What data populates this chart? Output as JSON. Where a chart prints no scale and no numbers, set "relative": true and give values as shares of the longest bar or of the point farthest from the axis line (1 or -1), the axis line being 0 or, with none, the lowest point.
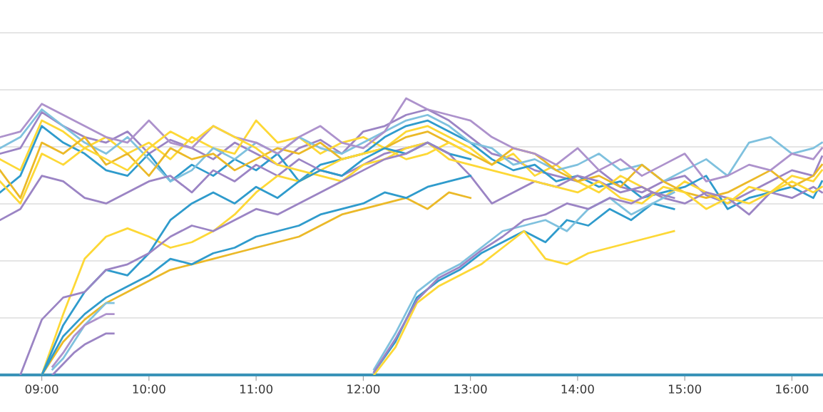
{
  "chart_data": {
    "type": "line",
    "relative": true,
    "grid": "y",
    "marker": "none",
    "line_style": "solid",
    "xlim": [
      8.61,
      16.29
    ],
    "xticks": [
      {
        "value": 9,
        "label": "09:00"
      },
      {
        "value": 10,
        "label": "10:00"
      },
      {
        "value": 11,
        "label": "11:00"
      },
      {
        "value": 12,
        "label": "12:00"
      },
      {
        "value": 13,
        "label": "13:00"
      },
      {
        "value": 14,
        "label": "14:00"
      },
      {
        "value": 15,
        "label": "15:00"
      },
      {
        "value": 16,
        "label": "16:00"
      }
    ],
    "x": [
      8.61,
      8.8,
      9.0,
      9.2,
      9.4,
      9.6,
      9.8,
      10.0,
      10.2,
      10.4,
      10.6,
      10.8,
      11.0,
      11.2,
      11.4,
      11.6,
      11.8,
      12.0,
      12.2,
      12.4,
      12.6,
      12.8,
      13.0,
      13.2,
      13.4,
      13.6,
      13.8,
      14.0,
      14.2,
      14.4,
      14.6,
      14.8,
      15.0,
      15.2,
      15.4,
      15.6,
      15.8,
      16.0,
      16.2,
      16.28
    ],
    "series": [
      {
        "color": "#9b84c4",
        "values": [
          0.8,
          0.82,
          0.95,
          0.9,
          0.86,
          0.84,
          0.88,
          0.8,
          0.85,
          0.82,
          0.78,
          0.84,
          0.8,
          0.76,
          0.82,
          0.85,
          0.8,
          0.88,
          0.9,
          0.94,
          0.96,
          0.92,
          0.86,
          0.8,
          0.78,
          0.74,
          0.72,
          0.7,
          0.74,
          0.68,
          0.66,
          0.7,
          0.72,
          0.65,
          0.62,
          0.66,
          0.7,
          0.74,
          0.72,
          0.79
        ]
      },
      {
        "color": "#fdd836",
        "values": [
          0.78,
          0.74,
          0.92,
          0.88,
          0.82,
          0.86,
          0.8,
          0.84,
          0.78,
          0.86,
          0.82,
          0.8,
          0.92,
          0.84,
          0.86,
          0.8,
          0.84,
          0.86,
          0.82,
          0.88,
          0.9,
          0.86,
          0.82,
          0.76,
          0.8,
          0.72,
          0.76,
          0.7,
          0.66,
          0.72,
          0.68,
          0.64,
          0.7,
          0.66,
          0.62,
          0.68,
          0.66,
          0.72,
          0.7,
          0.74
        ]
      },
      {
        "color": "#2f9bcc",
        "values": [
          0.66,
          0.72,
          0.9,
          0.84,
          0.8,
          0.74,
          0.72,
          0.8,
          0.7,
          0.76,
          0.72,
          0.78,
          0.74,
          0.8,
          0.7,
          0.76,
          0.78,
          0.8,
          0.86,
          0.9,
          0.92,
          0.88,
          0.84,
          0.78,
          0.74,
          0.76,
          0.7,
          0.72,
          0.68,
          0.7,
          0.64,
          0.66,
          0.68,
          0.72,
          0.6,
          0.64,
          0.66,
          0.68,
          0.64,
          0.7
        ]
      },
      {
        "color": "#7fc1de",
        "values": [
          0.82,
          0.86,
          0.96,
          0.9,
          0.84,
          0.8,
          0.86,
          0.78,
          0.7,
          0.74,
          0.82,
          0.78,
          0.84,
          0.8,
          0.86,
          0.82,
          0.8,
          0.84,
          0.88,
          0.92,
          0.94,
          0.9,
          0.84,
          0.82,
          0.76,
          0.78,
          0.74,
          0.76,
          0.8,
          0.74,
          0.76,
          0.7,
          0.74,
          0.78,
          0.72,
          0.84,
          0.86,
          0.8,
          0.82,
          0.84
        ]
      },
      {
        "color": "#ebb928",
        "values": [
          0.74,
          0.64,
          0.84,
          0.8,
          0.86,
          0.76,
          0.8,
          0.72,
          0.82,
          0.78,
          0.8,
          0.74,
          0.78,
          0.82,
          0.8,
          0.84,
          0.78,
          0.8,
          0.82,
          0.86,
          0.88,
          0.84,
          0.8,
          0.76,
          0.82,
          0.8,
          0.74,
          0.7,
          0.72,
          0.68,
          0.76,
          0.7,
          0.66,
          0.64,
          0.66,
          0.7,
          0.74,
          0.68,
          0.72,
          0.76
        ]
      },
      {
        "color": "#ad92cc",
        "values": [
          0.86,
          0.88,
          0.98,
          0.94,
          0.9,
          0.86,
          0.84,
          0.92,
          0.84,
          0.82,
          0.9,
          0.86,
          0.84,
          0.8,
          0.86,
          0.9,
          0.84,
          0.82,
          0.88,
          1.0,
          0.96,
          0.94,
          0.92,
          0.86,
          0.82,
          0.8,
          0.76,
          0.82,
          0.74,
          0.78,
          0.72,
          0.76,
          0.8,
          0.7,
          0.72,
          0.76,
          0.74,
          0.8,
          0.78,
          0.82
        ]
      },
      {
        "color": "#9b84c4",
        "values": [
          0.56,
          0.6,
          0.72,
          0.7,
          0.64,
          0.62,
          0.66,
          0.7,
          0.72,
          0.66,
          0.74,
          0.7,
          0.76,
          0.72,
          0.78,
          0.74,
          0.72,
          0.76,
          0.8,
          0.82,
          0.84,
          0.8,
          0.72,
          0.62,
          0.66,
          0.7,
          0.68,
          0.72,
          0.7,
          0.66,
          0.68,
          0.64,
          0.62,
          0.66,
          0.64,
          0.58,
          0.66,
          0.64,
          0.68,
          0.66
        ]
      },
      {
        "color": "#fdd836",
        "values": [
          0.7,
          0.62,
          0.8,
          0.76,
          0.82,
          0.78,
          0.74,
          0.82,
          0.88,
          0.84,
          0.9,
          0.86,
          0.82,
          0.76,
          0.74,
          0.72,
          0.7,
          0.76,
          0.78,
          0.82,
          0.84,
          0.78,
          0.76,
          0.74,
          0.72,
          0.7,
          0.68,
          0.66,
          0.7,
          0.64,
          0.62,
          0.68,
          0.66,
          0.6,
          0.64,
          0.62,
          0.66,
          0.7,
          0.66,
          0.68
        ]
      },
      {
        "color": "#fdd836",
        "x": [
          9.0,
          9.2,
          9.4,
          9.6,
          9.8,
          10.0,
          10.2,
          10.4,
          10.6,
          10.8,
          11.0,
          11.2,
          11.4,
          11.6,
          11.8,
          12.0,
          12.2,
          12.4,
          12.6,
          12.8,
          13.0
        ],
        "values": [
          0,
          0.22,
          0.42,
          0.5,
          0.53,
          0.5,
          0.46,
          0.48,
          0.52,
          0.58,
          0.66,
          0.72,
          0.7,
          0.74,
          0.78,
          0.8,
          0.82,
          0.78,
          0.8,
          0.84,
          0.8
        ]
      },
      {
        "color": "#2f9bcc",
        "x": [
          9.0,
          9.2,
          9.4,
          9.6,
          9.8,
          10.0,
          10.2,
          10.4,
          10.6,
          10.8,
          11.0,
          11.2,
          11.4,
          11.6,
          11.8,
          12.0,
          12.2,
          12.4,
          12.6,
          12.8,
          13.0
        ],
        "values": [
          0,
          0.18,
          0.3,
          0.38,
          0.36,
          0.44,
          0.56,
          0.62,
          0.66,
          0.62,
          0.68,
          0.64,
          0.7,
          0.74,
          0.72,
          0.78,
          0.82,
          0.8,
          0.84,
          0.8,
          0.78
        ]
      },
      {
        "color": "#9b84c4",
        "x": [
          8.8,
          9.0,
          9.2,
          9.4,
          9.6,
          9.8,
          10.0,
          10.2,
          10.4,
          10.6,
          10.8,
          11.0,
          11.2,
          11.4,
          11.6,
          11.8,
          12.0,
          12.2,
          12.4,
          12.6,
          12.8
        ],
        "values": [
          0,
          0.2,
          0.28,
          0.3,
          0.38,
          0.4,
          0.44,
          0.5,
          0.54,
          0.52,
          0.56,
          0.6,
          0.58,
          0.62,
          0.66,
          0.7,
          0.74,
          0.78,
          0.8,
          0.84,
          0.8
        ]
      },
      {
        "color": "#ebb928",
        "x": [
          9.0,
          9.2,
          9.4,
          9.6,
          9.8,
          10.0,
          10.2,
          10.4,
          10.6,
          10.8,
          11.0,
          11.2,
          11.4,
          11.6,
          11.8,
          12.0,
          12.2,
          12.4,
          12.6,
          12.8,
          13.0
        ],
        "values": [
          0,
          0.12,
          0.2,
          0.26,
          0.3,
          0.34,
          0.38,
          0.4,
          0.42,
          0.44,
          0.46,
          0.48,
          0.5,
          0.54,
          0.58,
          0.6,
          0.62,
          0.64,
          0.6,
          0.66,
          0.64
        ]
      },
      {
        "color": "#2f9bcc",
        "x": [
          9.0,
          9.2,
          9.4,
          9.6,
          9.8,
          10.0,
          10.2,
          10.4,
          10.6,
          10.8,
          11.0,
          11.2,
          11.4,
          11.6,
          11.8,
          12.0,
          12.2,
          12.4,
          12.6,
          12.8,
          13.0
        ],
        "values": [
          0,
          0.14,
          0.22,
          0.28,
          0.32,
          0.36,
          0.42,
          0.4,
          0.44,
          0.46,
          0.5,
          0.52,
          0.54,
          0.58,
          0.6,
          0.62,
          0.66,
          0.64,
          0.68,
          0.7,
          0.72
        ]
      },
      {
        "color": "#9b84c4",
        "x": [
          9.1,
          9.2,
          9.3,
          9.4,
          9.5,
          9.6,
          9.67
        ],
        "values": [
          0,
          0.04,
          0.08,
          0.11,
          0.13,
          0.15,
          0.15
        ]
      },
      {
        "color": "#7fc1de",
        "x": [
          9.1,
          9.2,
          9.3,
          9.4,
          9.5,
          9.6,
          9.67
        ],
        "values": [
          0.02,
          0.06,
          0.12,
          0.18,
          0.22,
          0.26,
          0.26
        ]
      },
      {
        "color": "#ad92cc",
        "x": [
          9.1,
          9.2,
          9.3,
          9.4,
          9.5,
          9.6,
          9.67
        ],
        "values": [
          0.03,
          0.08,
          0.14,
          0.18,
          0.2,
          0.22,
          0.22
        ]
      },
      {
        "color": "#2f9bcc",
        "x": [
          12.1,
          12.3,
          12.5,
          12.7,
          12.9,
          13.1,
          13.3,
          13.5,
          13.7,
          13.9,
          14.1,
          14.3,
          14.5,
          14.7,
          14.9
        ],
        "values": [
          0.01,
          0.12,
          0.28,
          0.34,
          0.38,
          0.44,
          0.48,
          0.52,
          0.48,
          0.56,
          0.54,
          0.6,
          0.56,
          0.62,
          0.6
        ]
      },
      {
        "color": "#7fc1de",
        "x": [
          12.1,
          12.3,
          12.5,
          12.7,
          12.9,
          13.1,
          13.3,
          13.5,
          13.7,
          13.9,
          14.1,
          14.3,
          14.5,
          14.7,
          14.9
        ],
        "values": [
          0.02,
          0.15,
          0.3,
          0.36,
          0.4,
          0.46,
          0.52,
          0.54,
          0.56,
          0.52,
          0.6,
          0.64,
          0.58,
          0.62,
          0.66
        ]
      },
      {
        "color": "#fdd836",
        "x": [
          12.1,
          12.3,
          12.5,
          12.7,
          12.9,
          13.1,
          13.3,
          13.5,
          13.7,
          13.9,
          14.1,
          14.3,
          14.5,
          14.7,
          14.9
        ],
        "values": [
          0,
          0.1,
          0.26,
          0.32,
          0.36,
          0.4,
          0.46,
          0.52,
          0.42,
          0.4,
          0.44,
          0.46,
          0.48,
          0.5,
          0.52
        ]
      },
      {
        "color": "#9b84c4",
        "x": [
          12.1,
          12.3,
          12.5,
          12.7,
          12.9,
          13.1,
          13.3,
          13.5,
          13.7,
          13.9,
          14.1,
          14.3,
          14.5,
          14.7,
          14.9
        ],
        "values": [
          0.01,
          0.13,
          0.27,
          0.35,
          0.39,
          0.45,
          0.5,
          0.56,
          0.58,
          0.62,
          0.6,
          0.64,
          0.62,
          0.66,
          0.64
        ]
      }
    ]
  }
}
